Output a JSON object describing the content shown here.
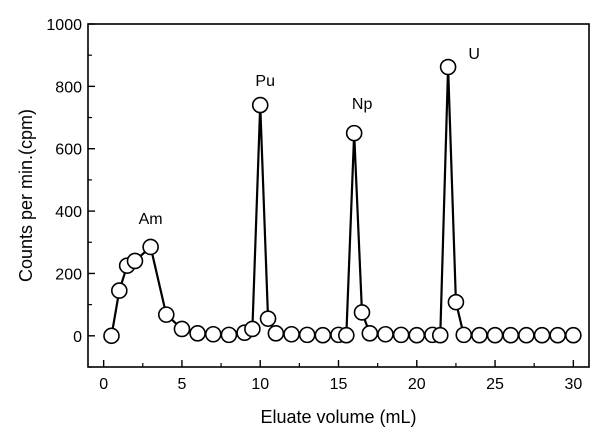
{
  "chart_data": {
    "type": "line",
    "title": "",
    "xlabel": "Eluate volume (mL)",
    "ylabel": "Counts per min.(cpm)",
    "xlim": [
      -1,
      31
    ],
    "ylim": [
      -100,
      1000
    ],
    "xticks": [
      0,
      5,
      10,
      15,
      20,
      25,
      30
    ],
    "yticks": [
      0,
      200,
      400,
      600,
      800,
      1000
    ],
    "xtick_labels": [
      "0",
      "5",
      "10",
      "15",
      "20",
      "25",
      "30"
    ],
    "ytick_labels": [
      "0",
      "200",
      "400",
      "600",
      "800",
      "1000"
    ],
    "grid": false,
    "legend": "none",
    "line_color": "#000000",
    "marker": "open-circle",
    "series": [
      {
        "x": [
          0.5,
          1.0,
          1.5,
          2.0,
          3.0,
          4.0,
          5.0,
          6.0,
          7.0,
          8.0,
          9.0,
          9.5,
          10.0,
          10.5,
          11.0,
          12.0,
          13.0,
          14.0,
          15.0,
          15.5,
          16.0,
          16.5,
          17.0,
          18.0,
          19.0,
          20.0,
          21.0,
          21.5,
          22.0,
          22.5,
          23.0,
          24.0,
          25.0,
          26.0,
          27.0,
          28.0,
          29.0,
          30.0
        ],
        "y": [
          0,
          145,
          225,
          240,
          285,
          68,
          22,
          8,
          5,
          3,
          10,
          22,
          740,
          55,
          8,
          5,
          3,
          2,
          3,
          2,
          650,
          75,
          8,
          5,
          3,
          2,
          3,
          2,
          862,
          108,
          3,
          2,
          2,
          2,
          2,
          2,
          2,
          2
        ]
      }
    ],
    "annotations": [
      {
        "text": "Am",
        "x": 3.0,
        "y": 285
      },
      {
        "text": "Pu",
        "x": 10.0,
        "y": 740
      },
      {
        "text": "Np",
        "x": 16.0,
        "y": 650
      },
      {
        "text": "U",
        "x": 22.0,
        "y": 862
      }
    ]
  }
}
